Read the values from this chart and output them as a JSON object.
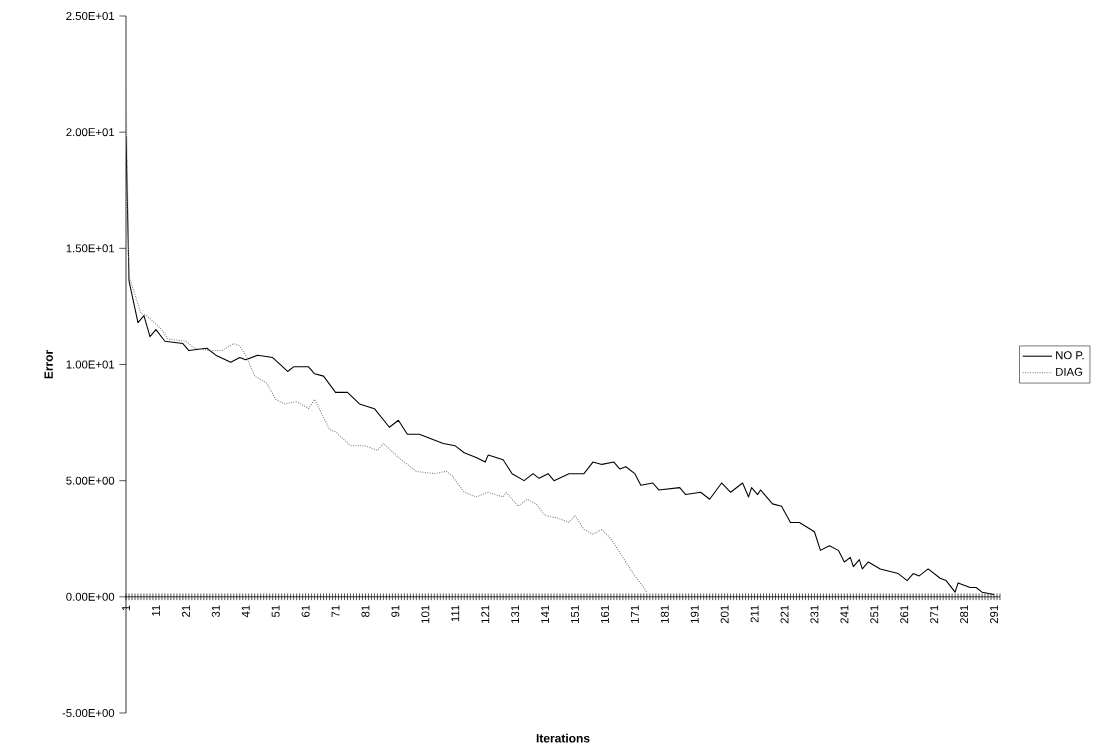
{
  "chart_data": {
    "type": "line",
    "xlabel": "Iterations",
    "ylabel": "Error",
    "xlim": [
      1,
      293
    ],
    "ylim": [
      -5,
      25
    ],
    "yticks": [
      {
        "value": -5,
        "label": "-5.00E+00"
      },
      {
        "value": 0,
        "label": "0.00E+00"
      },
      {
        "value": 5,
        "label": "5.00E+00"
      },
      {
        "value": 10,
        "label": "1.00E+01"
      },
      {
        "value": 15,
        "label": "1.50E+01"
      },
      {
        "value": 20,
        "label": "2.00E+01"
      },
      {
        "value": 25,
        "label": "2.50E+01"
      }
    ],
    "xticks": [
      1,
      {
        "value": 2,
        "label": null
      },
      {
        "value": 3,
        "label": null
      },
      {
        "value": 4,
        "label": null
      },
      {
        "value": 5,
        "label": null
      },
      {
        "value": 6,
        "label": null
      },
      {
        "value": 7,
        "label": null
      },
      {
        "value": 8,
        "label": null
      },
      {
        "value": 9,
        "label": null
      },
      {
        "value": 10,
        "label": null
      },
      11,
      {
        "value": 12,
        "label": null
      },
      {
        "value": 13,
        "label": null
      },
      {
        "value": 14,
        "label": null
      },
      {
        "value": 15,
        "label": null
      },
      {
        "value": 16,
        "label": null
      },
      {
        "value": 17,
        "label": null
      },
      {
        "value": 18,
        "label": null
      },
      {
        "value": 19,
        "label": null
      },
      {
        "value": 20,
        "label": null
      },
      21,
      {
        "value": 22,
        "label": null
      },
      {
        "value": 23,
        "label": null
      },
      {
        "value": 24,
        "label": null
      },
      {
        "value": 25,
        "label": null
      },
      {
        "value": 26,
        "label": null
      },
      {
        "value": 27,
        "label": null
      },
      {
        "value": 28,
        "label": null
      },
      {
        "value": 29,
        "label": null
      },
      {
        "value": 30,
        "label": null
      },
      31,
      {
        "value": 32,
        "label": null
      },
      {
        "value": 33,
        "label": null
      },
      {
        "value": 34,
        "label": null
      },
      {
        "value": 35,
        "label": null
      },
      {
        "value": 36,
        "label": null
      },
      {
        "value": 37,
        "label": null
      },
      {
        "value": 38,
        "label": null
      },
      {
        "value": 39,
        "label": null
      },
      {
        "value": 40,
        "label": null
      },
      41,
      {
        "value": 42,
        "label": null
      },
      {
        "value": 43,
        "label": null
      },
      {
        "value": 44,
        "label": null
      },
      {
        "value": 45,
        "label": null
      },
      {
        "value": 46,
        "label": null
      },
      {
        "value": 47,
        "label": null
      },
      {
        "value": 48,
        "label": null
      },
      {
        "value": 49,
        "label": null
      },
      {
        "value": 50,
        "label": null
      },
      51,
      {
        "value": 52,
        "label": null
      },
      {
        "value": 53,
        "label": null
      },
      {
        "value": 54,
        "label": null
      },
      {
        "value": 55,
        "label": null
      },
      {
        "value": 56,
        "label": null
      },
      {
        "value": 57,
        "label": null
      },
      {
        "value": 58,
        "label": null
      },
      {
        "value": 59,
        "label": null
      },
      {
        "value": 60,
        "label": null
      },
      61,
      {
        "value": 62,
        "label": null
      },
      {
        "value": 63,
        "label": null
      },
      {
        "value": 64,
        "label": null
      },
      {
        "value": 65,
        "label": null
      },
      {
        "value": 66,
        "label": null
      },
      {
        "value": 67,
        "label": null
      },
      {
        "value": 68,
        "label": null
      },
      {
        "value": 69,
        "label": null
      },
      {
        "value": 70,
        "label": null
      },
      71,
      {
        "value": 72,
        "label": null
      },
      {
        "value": 73,
        "label": null
      },
      {
        "value": 74,
        "label": null
      },
      {
        "value": 75,
        "label": null
      },
      {
        "value": 76,
        "label": null
      },
      {
        "value": 77,
        "label": null
      },
      {
        "value": 78,
        "label": null
      },
      {
        "value": 79,
        "label": null
      },
      {
        "value": 80,
        "label": null
      },
      81,
      {
        "value": 82,
        "label": null
      },
      {
        "value": 83,
        "label": null
      },
      {
        "value": 84,
        "label": null
      },
      {
        "value": 85,
        "label": null
      },
      {
        "value": 86,
        "label": null
      },
      {
        "value": 87,
        "label": null
      },
      {
        "value": 88,
        "label": null
      },
      {
        "value": 89,
        "label": null
      },
      {
        "value": 90,
        "label": null
      },
      91,
      {
        "value": 92,
        "label": null
      },
      {
        "value": 93,
        "label": null
      },
      {
        "value": 94,
        "label": null
      },
      {
        "value": 95,
        "label": null
      },
      {
        "value": 96,
        "label": null
      },
      {
        "value": 97,
        "label": null
      },
      {
        "value": 98,
        "label": null
      },
      {
        "value": 99,
        "label": null
      },
      {
        "value": 100,
        "label": null
      },
      101,
      {
        "value": 102,
        "label": null
      },
      {
        "value": 103,
        "label": null
      },
      {
        "value": 104,
        "label": null
      },
      {
        "value": 105,
        "label": null
      },
      {
        "value": 106,
        "label": null
      },
      {
        "value": 107,
        "label": null
      },
      {
        "value": 108,
        "label": null
      },
      {
        "value": 109,
        "label": null
      },
      {
        "value": 110,
        "label": null
      },
      111,
      {
        "value": 112,
        "label": null
      },
      {
        "value": 113,
        "label": null
      },
      {
        "value": 114,
        "label": null
      },
      {
        "value": 115,
        "label": null
      },
      {
        "value": 116,
        "label": null
      },
      {
        "value": 117,
        "label": null
      },
      {
        "value": 118,
        "label": null
      },
      {
        "value": 119,
        "label": null
      },
      {
        "value": 120,
        "label": null
      },
      121,
      {
        "value": 122,
        "label": null
      },
      {
        "value": 123,
        "label": null
      },
      {
        "value": 124,
        "label": null
      },
      {
        "value": 125,
        "label": null
      },
      {
        "value": 126,
        "label": null
      },
      {
        "value": 127,
        "label": null
      },
      {
        "value": 128,
        "label": null
      },
      {
        "value": 129,
        "label": null
      },
      {
        "value": 130,
        "label": null
      },
      131,
      {
        "value": 132,
        "label": null
      },
      {
        "value": 133,
        "label": null
      },
      {
        "value": 134,
        "label": null
      },
      {
        "value": 135,
        "label": null
      },
      {
        "value": 136,
        "label": null
      },
      {
        "value": 137,
        "label": null
      },
      {
        "value": 138,
        "label": null
      },
      {
        "value": 139,
        "label": null
      },
      {
        "value": 140,
        "label": null
      },
      141,
      {
        "value": 142,
        "label": null
      },
      {
        "value": 143,
        "label": null
      },
      {
        "value": 144,
        "label": null
      },
      {
        "value": 145,
        "label": null
      },
      {
        "value": 146,
        "label": null
      },
      {
        "value": 147,
        "label": null
      },
      {
        "value": 148,
        "label": null
      },
      {
        "value": 149,
        "label": null
      },
      {
        "value": 150,
        "label": null
      },
      151,
      {
        "value": 152,
        "label": null
      },
      {
        "value": 153,
        "label": null
      },
      {
        "value": 154,
        "label": null
      },
      {
        "value": 155,
        "label": null
      },
      {
        "value": 156,
        "label": null
      },
      {
        "value": 157,
        "label": null
      },
      {
        "value": 158,
        "label": null
      },
      {
        "value": 159,
        "label": null
      },
      {
        "value": 160,
        "label": null
      },
      161,
      {
        "value": 162,
        "label": null
      },
      {
        "value": 163,
        "label": null
      },
      {
        "value": 164,
        "label": null
      },
      {
        "value": 165,
        "label": null
      },
      {
        "value": 166,
        "label": null
      },
      {
        "value": 167,
        "label": null
      },
      {
        "value": 168,
        "label": null
      },
      {
        "value": 169,
        "label": null
      },
      {
        "value": 170,
        "label": null
      },
      171,
      {
        "value": 172,
        "label": null
      },
      {
        "value": 173,
        "label": null
      },
      {
        "value": 174,
        "label": null
      },
      {
        "value": 175,
        "label": null
      },
      {
        "value": 176,
        "label": null
      },
      {
        "value": 177,
        "label": null
      },
      {
        "value": 178,
        "label": null
      },
      {
        "value": 179,
        "label": null
      },
      {
        "value": 180,
        "label": null
      },
      181,
      {
        "value": 182,
        "label": null
      },
      {
        "value": 183,
        "label": null
      },
      {
        "value": 184,
        "label": null
      },
      {
        "value": 185,
        "label": null
      },
      {
        "value": 186,
        "label": null
      },
      {
        "value": 187,
        "label": null
      },
      {
        "value": 188,
        "label": null
      },
      {
        "value": 189,
        "label": null
      },
      {
        "value": 190,
        "label": null
      },
      191,
      {
        "value": 192,
        "label": null
      },
      {
        "value": 193,
        "label": null
      },
      {
        "value": 194,
        "label": null
      },
      {
        "value": 195,
        "label": null
      },
      {
        "value": 196,
        "label": null
      },
      {
        "value": 197,
        "label": null
      },
      {
        "value": 198,
        "label": null
      },
      {
        "value": 199,
        "label": null
      },
      {
        "value": 200,
        "label": null
      },
      201,
      {
        "value": 202,
        "label": null
      },
      {
        "value": 203,
        "label": null
      },
      {
        "value": 204,
        "label": null
      },
      {
        "value": 205,
        "label": null
      },
      {
        "value": 206,
        "label": null
      },
      {
        "value": 207,
        "label": null
      },
      {
        "value": 208,
        "label": null
      },
      {
        "value": 209,
        "label": null
      },
      {
        "value": 210,
        "label": null
      },
      211,
      {
        "value": 212,
        "label": null
      },
      {
        "value": 213,
        "label": null
      },
      {
        "value": 214,
        "label": null
      },
      {
        "value": 215,
        "label": null
      },
      {
        "value": 216,
        "label": null
      },
      {
        "value": 217,
        "label": null
      },
      {
        "value": 218,
        "label": null
      },
      {
        "value": 219,
        "label": null
      },
      {
        "value": 220,
        "label": null
      },
      221,
      {
        "value": 222,
        "label": null
      },
      {
        "value": 223,
        "label": null
      },
      {
        "value": 224,
        "label": null
      },
      {
        "value": 225,
        "label": null
      },
      {
        "value": 226,
        "label": null
      },
      {
        "value": 227,
        "label": null
      },
      {
        "value": 228,
        "label": null
      },
      {
        "value": 229,
        "label": null
      },
      {
        "value": 230,
        "label": null
      },
      231,
      {
        "value": 232,
        "label": null
      },
      {
        "value": 233,
        "label": null
      },
      {
        "value": 234,
        "label": null
      },
      {
        "value": 235,
        "label": null
      },
      {
        "value": 236,
        "label": null
      },
      {
        "value": 237,
        "label": null
      },
      {
        "value": 238,
        "label": null
      },
      {
        "value": 239,
        "label": null
      },
      {
        "value": 240,
        "label": null
      },
      241,
      {
        "value": 242,
        "label": null
      },
      {
        "value": 243,
        "label": null
      },
      {
        "value": 244,
        "label": null
      },
      {
        "value": 245,
        "label": null
      },
      {
        "value": 246,
        "label": null
      },
      {
        "value": 247,
        "label": null
      },
      {
        "value": 248,
        "label": null
      },
      {
        "value": 249,
        "label": null
      },
      {
        "value": 250,
        "label": null
      },
      251,
      {
        "value": 252,
        "label": null
      },
      {
        "value": 253,
        "label": null
      },
      {
        "value": 254,
        "label": null
      },
      {
        "value": 255,
        "label": null
      },
      {
        "value": 256,
        "label": null
      },
      {
        "value": 257,
        "label": null
      },
      {
        "value": 258,
        "label": null
      },
      {
        "value": 259,
        "label": null
      },
      {
        "value": 260,
        "label": null
      },
      261,
      {
        "value": 262,
        "label": null
      },
      {
        "value": 263,
        "label": null
      },
      {
        "value": 264,
        "label": null
      },
      {
        "value": 265,
        "label": null
      },
      {
        "value": 266,
        "label": null
      },
      {
        "value": 267,
        "label": null
      },
      {
        "value": 268,
        "label": null
      },
      {
        "value": 269,
        "label": null
      },
      {
        "value": 270,
        "label": null
      },
      271,
      {
        "value": 272,
        "label": null
      },
      {
        "value": 273,
        "label": null
      },
      {
        "value": 274,
        "label": null
      },
      {
        "value": 275,
        "label": null
      },
      {
        "value": 276,
        "label": null
      },
      {
        "value": 277,
        "label": null
      },
      {
        "value": 278,
        "label": null
      },
      {
        "value": 279,
        "label": null
      },
      {
        "value": 280,
        "label": null
      },
      281,
      {
        "value": 282,
        "label": null
      },
      {
        "value": 283,
        "label": null
      },
      {
        "value": 284,
        "label": null
      },
      {
        "value": 285,
        "label": null
      },
      {
        "value": 286,
        "label": null
      },
      {
        "value": 287,
        "label": null
      },
      {
        "value": 288,
        "label": null
      },
      {
        "value": 289,
        "label": null
      },
      {
        "value": 290,
        "label": null
      },
      291,
      {
        "value": 292,
        "label": null
      },
      {
        "value": 293,
        "label": null
      }
    ],
    "legend": "right",
    "series": [
      {
        "name": "NO P.",
        "color": "#000000",
        "line_style": "solid",
        "x": [
          1,
          2,
          5,
          7,
          9,
          11,
          14,
          20,
          22,
          28,
          31,
          36,
          39,
          41,
          45,
          50,
          55,
          57,
          62,
          64,
          67,
          71,
          75,
          79,
          84,
          89,
          92,
          95,
          99,
          107,
          111,
          114,
          118,
          121,
          122,
          127,
          130,
          134,
          137,
          139,
          142,
          144,
          149,
          154,
          157,
          160,
          164,
          166,
          168,
          171,
          173,
          177,
          179,
          186,
          188,
          193,
          196,
          200,
          203,
          205,
          207,
          209,
          210,
          212,
          213,
          217,
          220,
          223,
          226,
          231,
          233,
          236,
          239,
          241,
          243,
          244,
          246,
          247,
          249,
          253,
          256,
          259,
          262,
          264,
          266,
          269,
          273,
          275,
          278,
          279,
          283,
          285,
          287,
          291
        ],
        "values": [
          19.8,
          13.6,
          11.8,
          12.1,
          11.2,
          11.5,
          11.0,
          10.9,
          10.6,
          10.7,
          10.4,
          10.1,
          10.3,
          10.2,
          10.4,
          10.3,
          9.7,
          9.9,
          9.9,
          9.6,
          9.5,
          8.8,
          8.8,
          8.3,
          8.1,
          7.3,
          7.6,
          7.0,
          7.0,
          6.6,
          6.5,
          6.2,
          6.0,
          5.8,
          6.1,
          5.9,
          5.3,
          5.0,
          5.3,
          5.1,
          5.3,
          5.0,
          5.3,
          5.3,
          5.8,
          5.7,
          5.8,
          5.5,
          5.6,
          5.3,
          4.8,
          4.9,
          4.6,
          4.7,
          4.4,
          4.5,
          4.2,
          4.9,
          4.5,
          4.7,
          4.9,
          4.3,
          4.7,
          4.4,
          4.6,
          4.0,
          3.9,
          3.2,
          3.2,
          2.8,
          2.0,
          2.2,
          2.0,
          1.5,
          1.7,
          1.3,
          1.6,
          1.2,
          1.5,
          1.2,
          1.1,
          1.0,
          0.7,
          1.0,
          0.9,
          1.2,
          0.8,
          0.7,
          0.2,
          0.6,
          0.4,
          0.4,
          0.2,
          0.1
        ]
      },
      {
        "name": "DIAG",
        "color": "#808080",
        "line_style": "dotted",
        "x": [
          1,
          2,
          6,
          8,
          13,
          15,
          21,
          24,
          29,
          33,
          37,
          39,
          41,
          44,
          48,
          51,
          54,
          58,
          62,
          64,
          69,
          71,
          76,
          81,
          85,
          87,
          92,
          98,
          104,
          108,
          110,
          114,
          118,
          122,
          127,
          128,
          132,
          135,
          138,
          141,
          145,
          149,
          151,
          154,
          157,
          160,
          163,
          167,
          171,
          174,
          175
        ],
        "values": [
          22.0,
          13.8,
          12.2,
          12.1,
          11.5,
          11.1,
          11.0,
          10.7,
          10.6,
          10.6,
          10.9,
          10.8,
          10.4,
          9.5,
          9.2,
          8.5,
          8.3,
          8.4,
          8.1,
          8.5,
          7.2,
          7.1,
          6.5,
          6.5,
          6.3,
          6.6,
          6.0,
          5.4,
          5.3,
          5.4,
          5.2,
          4.5,
          4.3,
          4.5,
          4.3,
          4.5,
          3.9,
          4.2,
          4.0,
          3.5,
          3.4,
          3.2,
          3.5,
          2.9,
          2.7,
          2.9,
          2.5,
          1.7,
          0.9,
          0.4,
          0.2
        ]
      }
    ]
  }
}
